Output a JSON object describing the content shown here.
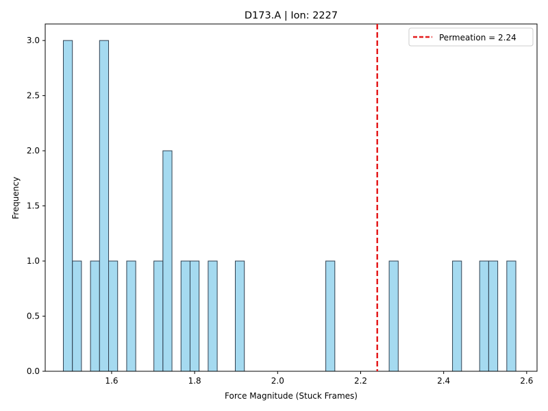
{
  "chart_data": {
    "type": "bar",
    "title": "D173.A | Ion: 2227",
    "xlabel": "Force Magnitude (Stuck Frames)",
    "ylabel": "Frequency",
    "xlim": [
      1.44,
      2.625
    ],
    "ylim": [
      0,
      3.15
    ],
    "bin_width": 0.0218,
    "x_ticks": [
      1.6,
      1.8,
      2.0,
      2.2,
      2.4,
      2.6
    ],
    "x_tick_labels": [
      "1.6",
      "1.8",
      "2.0",
      "2.2",
      "2.4",
      "2.6"
    ],
    "y_ticks": [
      0,
      0.5,
      1.0,
      1.5,
      2.0,
      2.5,
      3.0
    ],
    "y_tick_labels": [
      "0.0",
      "0.5",
      "1.0",
      "1.5",
      "2.0",
      "2.5",
      "3.0"
    ],
    "bins": [
      {
        "left": 1.4837,
        "count": 3
      },
      {
        "left": 1.5055,
        "count": 1
      },
      {
        "left": 1.5491,
        "count": 1
      },
      {
        "left": 1.5709,
        "count": 3
      },
      {
        "left": 1.5927,
        "count": 1
      },
      {
        "left": 1.6363,
        "count": 1
      },
      {
        "left": 1.7018,
        "count": 1
      },
      {
        "left": 1.7236,
        "count": 2
      },
      {
        "left": 1.7672,
        "count": 1
      },
      {
        "left": 1.789,
        "count": 1
      },
      {
        "left": 1.8326,
        "count": 1
      },
      {
        "left": 1.898,
        "count": 1
      },
      {
        "left": 2.116,
        "count": 1
      },
      {
        "left": 2.2687,
        "count": 1
      },
      {
        "left": 2.4213,
        "count": 1
      },
      {
        "left": 2.4867,
        "count": 1
      },
      {
        "left": 2.5085,
        "count": 1
      },
      {
        "left": 2.5521,
        "count": 1
      }
    ],
    "reference_line": {
      "x": 2.24,
      "label": "Permeation = 2.24",
      "color": "#e41a1c"
    },
    "bar_fill": "#87ceeb",
    "bar_edge": "#2f3f4f",
    "legend_position": "top-right",
    "grid": false
  }
}
